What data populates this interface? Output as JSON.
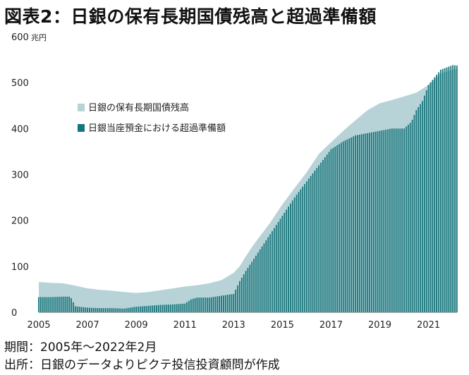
{
  "title": "図表2：日銀の保有長期国債残高と超過準備額",
  "unit": "兆円",
  "footer": {
    "period": "期間：2005年～2022年2月",
    "source": "出所：日銀のデータよりピクテ投信投資顧問が作成"
  },
  "colors": {
    "jgb_area": "#b7d3d8",
    "excess_reserves": "#15757a"
  },
  "chart_data": {
    "type": "area",
    "title": "図表2：日銀の保有長期国債残高と超過準備額",
    "xlabel": "",
    "ylabel": "兆円",
    "xlim": [
      2005,
      2022.17
    ],
    "ylim": [
      0,
      600
    ],
    "yticks": [
      0,
      100,
      200,
      300,
      400,
      500,
      600
    ],
    "xticks": [
      2005,
      2007,
      2009,
      2011,
      2013,
      2015,
      2017,
      2019,
      2021
    ],
    "grid": false,
    "legend": "top-left",
    "series": [
      {
        "name": "日銀の保有長期国債残高",
        "type": "area",
        "x": [
          2005.0,
          2005.5,
          2006.0,
          2006.5,
          2007.0,
          2007.5,
          2008.0,
          2008.5,
          2009.0,
          2009.5,
          2010.0,
          2010.5,
          2011.0,
          2011.5,
          2012.0,
          2012.5,
          2013.0,
          2013.25,
          2013.5,
          2013.75,
          2014.0,
          2014.5,
          2015.0,
          2015.5,
          2016.0,
          2016.5,
          2017.0,
          2017.5,
          2018.0,
          2018.5,
          2019.0,
          2019.5,
          2020.0,
          2020.5,
          2021.0,
          2021.5,
          2022.0,
          2022.17
        ],
        "values": [
          66,
          64,
          63,
          58,
          52,
          49,
          47,
          44,
          42,
          44,
          48,
          52,
          56,
          59,
          63,
          70,
          86,
          100,
          122,
          142,
          160,
          195,
          235,
          270,
          305,
          345,
          370,
          395,
          418,
          440,
          455,
          462,
          470,
          478,
          495,
          520,
          528,
          530
        ]
      },
      {
        "name": "日銀当座預金における超過準備額",
        "type": "bar",
        "x": [
          2005.0,
          2005.5,
          2006.0,
          2006.3,
          2006.5,
          2007.0,
          2007.5,
          2008.0,
          2008.5,
          2008.75,
          2009.0,
          2009.5,
          2010.0,
          2010.5,
          2011.0,
          2011.25,
          2011.5,
          2012.0,
          2012.5,
          2013.0,
          2013.25,
          2013.5,
          2013.75,
          2014.0,
          2014.5,
          2015.0,
          2015.5,
          2016.0,
          2016.5,
          2017.0,
          2017.5,
          2018.0,
          2018.5,
          2019.0,
          2019.5,
          2020.0,
          2020.3,
          2020.5,
          2020.75,
          2021.0,
          2021.5,
          2022.0,
          2022.17
        ],
        "values": [
          33,
          33,
          34,
          34,
          13,
          10,
          9,
          9,
          8,
          10,
          12,
          14,
          16,
          17,
          19,
          28,
          32,
          32,
          36,
          40,
          68,
          90,
          110,
          130,
          170,
          210,
          250,
          285,
          320,
          355,
          372,
          385,
          390,
          395,
          400,
          400,
          415,
          440,
          460,
          495,
          528,
          538,
          537
        ]
      }
    ]
  }
}
